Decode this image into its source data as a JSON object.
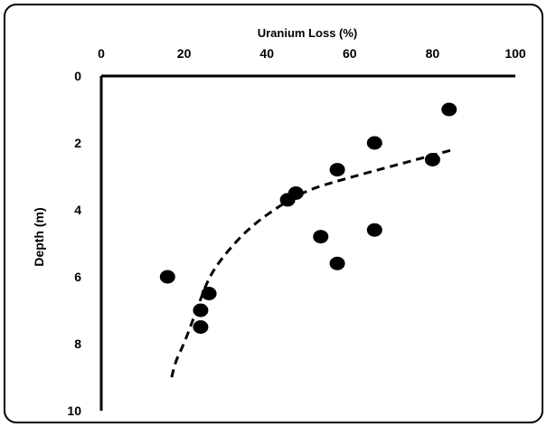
{
  "chart_data": {
    "type": "scatter",
    "xlabel": "Uranium Loss (%)",
    "ylabel": "Depth (m)",
    "xlim": [
      0,
      100
    ],
    "ylim": [
      0,
      10
    ],
    "y_inverted": true,
    "x_axis_position": "top",
    "x_ticks": [
      0,
      20,
      40,
      60,
      80,
      100
    ],
    "y_ticks": [
      0,
      2,
      4,
      6,
      8,
      10
    ],
    "x_tick_labels": [
      "0",
      "20",
      "40",
      "60",
      "80",
      "100"
    ],
    "y_tick_labels": [
      "0",
      "2",
      "4",
      "6",
      "8",
      "10"
    ],
    "grid": false,
    "legend": "none",
    "series": [
      {
        "type": "scatter",
        "marker_color": "#000000",
        "points": [
          {
            "x": 84,
            "y": 1.0
          },
          {
            "x": 66,
            "y": 2.0
          },
          {
            "x": 80,
            "y": 2.5
          },
          {
            "x": 57,
            "y": 2.8
          },
          {
            "x": 47,
            "y": 3.5
          },
          {
            "x": 45,
            "y": 3.7
          },
          {
            "x": 66,
            "y": 4.6
          },
          {
            "x": 53,
            "y": 4.8
          },
          {
            "x": 57,
            "y": 5.6
          },
          {
            "x": 16,
            "y": 6.0
          },
          {
            "x": 26,
            "y": 6.5
          },
          {
            "x": 24,
            "y": 7.0
          },
          {
            "x": 24,
            "y": 7.5
          }
        ]
      },
      {
        "type": "line",
        "style": "dashed",
        "line_color": "#000000",
        "points": [
          {
            "x": 17,
            "y": 9.0
          },
          {
            "x": 18,
            "y": 8.5
          },
          {
            "x": 20,
            "y": 8.0
          },
          {
            "x": 23,
            "y": 7.0
          },
          {
            "x": 26,
            "y": 6.0
          },
          {
            "x": 30,
            "y": 5.3
          },
          {
            "x": 36,
            "y": 4.5
          },
          {
            "x": 44,
            "y": 3.8
          },
          {
            "x": 50,
            "y": 3.4
          },
          {
            "x": 58,
            "y": 3.1
          },
          {
            "x": 70,
            "y": 2.7
          },
          {
            "x": 85,
            "y": 2.2
          }
        ]
      }
    ]
  }
}
